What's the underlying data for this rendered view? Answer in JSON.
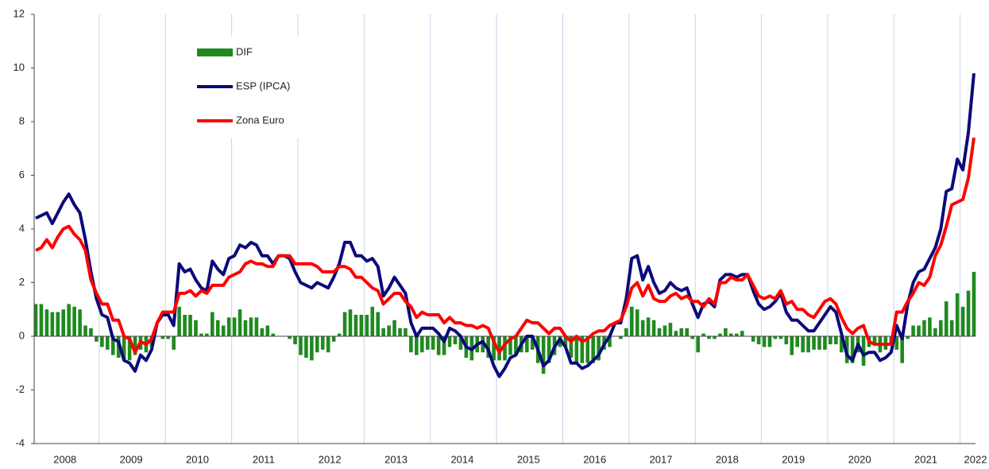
{
  "chart_data": {
    "type": "combo",
    "categories": [
      null,
      null,
      null,
      null,
      null,
      "2008",
      null,
      null,
      null,
      null,
      null,
      null,
      null,
      null,
      null,
      null,
      null,
      "2009",
      null,
      null,
      null,
      null,
      null,
      null,
      null,
      null,
      null,
      null,
      null,
      "2010",
      null,
      null,
      null,
      null,
      null,
      null,
      null,
      null,
      null,
      null,
      null,
      "2011",
      null,
      null,
      null,
      null,
      null,
      null,
      null,
      null,
      null,
      null,
      null,
      "2012",
      null,
      null,
      null,
      null,
      null,
      null,
      null,
      null,
      null,
      null,
      null,
      "2013",
      null,
      null,
      null,
      null,
      null,
      null,
      null,
      null,
      null,
      null,
      null,
      "2014",
      null,
      null,
      null,
      null,
      null,
      null,
      null,
      null,
      null,
      null,
      null,
      "2015",
      null,
      null,
      null,
      null,
      null,
      null,
      null,
      null,
      null,
      null,
      null,
      "2016",
      null,
      null,
      null,
      null,
      null,
      null,
      null,
      null,
      null,
      null,
      null,
      "2017",
      null,
      null,
      null,
      null,
      null,
      null,
      null,
      null,
      null,
      null,
      null,
      "2018",
      null,
      null,
      null,
      null,
      null,
      null,
      null,
      null,
      null,
      null,
      null,
      "2019",
      null,
      null,
      null,
      null,
      null,
      null,
      null,
      null,
      null,
      null,
      null,
      "2020",
      null,
      null,
      null,
      null,
      null,
      null,
      null,
      null,
      null,
      null,
      null,
      "2021",
      null,
      null,
      null,
      null,
      null,
      null,
      null,
      null,
      "2022"
    ],
    "series": [
      {
        "name": "DIF",
        "type": "bar",
        "color": "#1f8a1f",
        "values": [
          1.2,
          1.2,
          1.0,
          0.9,
          0.9,
          1.0,
          1.2,
          1.1,
          1.0,
          0.4,
          0.3,
          -0.2,
          -0.4,
          -0.5,
          -0.7,
          -0.8,
          -0.9,
          -0.9,
          -0.7,
          -0.5,
          -0.6,
          -0.4,
          0.0,
          -0.1,
          -0.1,
          -0.5,
          1.1,
          0.8,
          0.8,
          0.6,
          0.1,
          0.1,
          0.9,
          0.6,
          0.4,
          0.7,
          0.7,
          1.0,
          0.6,
          0.7,
          0.7,
          0.3,
          0.4,
          0.1,
          0.0,
          0.0,
          -0.1,
          -0.3,
          -0.7,
          -0.8,
          -0.9,
          -0.6,
          -0.5,
          -0.6,
          -0.2,
          0.1,
          0.9,
          1.0,
          0.8,
          0.8,
          0.8,
          1.1,
          0.9,
          0.3,
          0.4,
          0.6,
          0.3,
          0.3,
          -0.6,
          -0.7,
          -0.6,
          -0.5,
          -0.5,
          -0.7,
          -0.7,
          -0.4,
          -0.3,
          -0.5,
          -0.8,
          -0.9,
          -0.6,
          -0.6,
          -0.8,
          -0.9,
          -0.9,
          -0.9,
          -0.7,
          -0.7,
          -0.6,
          -0.6,
          -0.5,
          -1.0,
          -1.4,
          -1.0,
          -0.7,
          -0.4,
          -0.4,
          -0.8,
          -1.0,
          -1.0,
          -1.0,
          -1.0,
          -0.9,
          -0.5,
          -0.4,
          0.0,
          -0.1,
          0.3,
          1.1,
          1.0,
          0.6,
          0.7,
          0.6,
          0.3,
          0.4,
          0.5,
          0.2,
          0.3,
          0.3,
          -0.1,
          -0.6,
          0.1,
          -0.1,
          -0.1,
          0.1,
          0.3,
          0.1,
          0.1,
          0.2,
          0.0,
          -0.2,
          -0.3,
          -0.4,
          -0.4,
          -0.1,
          -0.1,
          -0.3,
          -0.7,
          -0.4,
          -0.6,
          -0.6,
          -0.5,
          -0.5,
          -0.5,
          -0.3,
          -0.3,
          -0.6,
          -1.0,
          -1.0,
          -0.6,
          -1.1,
          -0.4,
          -0.3,
          -0.6,
          -0.5,
          -0.3,
          -0.5,
          -1.0,
          -0.1,
          0.4,
          0.4,
          0.6,
          0.7,
          0.3,
          0.6,
          1.3,
          0.6,
          1.6,
          1.1,
          1.7,
          2.4
        ]
      },
      {
        "name": "ESP (IPCA)",
        "type": "line",
        "color": "#0a0a7a",
        "values": [
          4.4,
          4.5,
          4.6,
          4.2,
          4.6,
          5.0,
          5.3,
          4.9,
          4.6,
          3.6,
          2.4,
          1.4,
          0.8,
          0.7,
          -0.1,
          -0.2,
          -0.9,
          -1.0,
          -1.3,
          -0.7,
          -0.9,
          -0.5,
          0.5,
          0.8,
          0.8,
          0.4,
          2.7,
          2.4,
          2.5,
          2.1,
          1.8,
          1.7,
          2.8,
          2.5,
          2.3,
          2.9,
          3.0,
          3.4,
          3.3,
          3.5,
          3.4,
          3.0,
          3.0,
          2.7,
          3.0,
          3.0,
          2.9,
          2.4,
          2.0,
          1.9,
          1.8,
          2.0,
          1.9,
          1.8,
          2.2,
          2.7,
          3.5,
          3.5,
          3.0,
          3.0,
          2.8,
          2.9,
          2.6,
          1.5,
          1.8,
          2.2,
          1.9,
          1.6,
          0.5,
          0.0,
          0.3,
          0.3,
          0.3,
          0.1,
          -0.2,
          0.3,
          0.2,
          0.0,
          -0.4,
          -0.5,
          -0.3,
          -0.2,
          -0.5,
          -1.1,
          -1.5,
          -1.2,
          -0.8,
          -0.7,
          -0.3,
          0.0,
          0.0,
          -0.5,
          -1.1,
          -0.9,
          -0.4,
          -0.1,
          -0.4,
          -1.0,
          -1.0,
          -1.2,
          -1.1,
          -0.9,
          -0.7,
          -0.3,
          0.0,
          0.5,
          0.5,
          1.4,
          2.9,
          3.0,
          2.1,
          2.6,
          2.0,
          1.6,
          1.7,
          2.0,
          1.8,
          1.7,
          1.8,
          1.2,
          0.7,
          1.2,
          1.3,
          1.1,
          2.1,
          2.3,
          2.3,
          2.2,
          2.3,
          2.3,
          1.7,
          1.2,
          1.0,
          1.1,
          1.3,
          1.6,
          0.9,
          0.6,
          0.6,
          0.4,
          0.2,
          0.2,
          0.5,
          0.8,
          1.1,
          0.9,
          0.1,
          -0.7,
          -0.9,
          -0.3,
          -0.7,
          -0.6,
          -0.6,
          -0.9,
          -0.8,
          -0.6,
          0.4,
          -0.1,
          1.2,
          2.0,
          2.4,
          2.5,
          2.9,
          3.3,
          4.0,
          5.4,
          5.5,
          6.6,
          6.2,
          7.6,
          9.8
        ]
      },
      {
        "name": "Zona Euro",
        "type": "line",
        "color": "#ff0000",
        "values": [
          3.2,
          3.3,
          3.6,
          3.3,
          3.7,
          4.0,
          4.1,
          3.8,
          3.6,
          3.2,
          2.1,
          1.6,
          1.2,
          1.2,
          0.6,
          0.6,
          0.0,
          -0.1,
          -0.6,
          -0.2,
          -0.3,
          -0.1,
          0.5,
          0.9,
          0.9,
          0.9,
          1.6,
          1.6,
          1.7,
          1.5,
          1.7,
          1.6,
          1.9,
          1.9,
          1.9,
          2.2,
          2.3,
          2.4,
          2.7,
          2.8,
          2.7,
          2.7,
          2.6,
          2.6,
          3.0,
          3.0,
          3.0,
          2.7,
          2.7,
          2.7,
          2.7,
          2.6,
          2.4,
          2.4,
          2.4,
          2.6,
          2.6,
          2.5,
          2.2,
          2.2,
          2.0,
          1.8,
          1.7,
          1.2,
          1.4,
          1.6,
          1.6,
          1.3,
          1.1,
          0.7,
          0.9,
          0.8,
          0.8,
          0.8,
          0.5,
          0.7,
          0.5,
          0.5,
          0.4,
          0.4,
          0.3,
          0.4,
          0.3,
          -0.2,
          -0.6,
          -0.3,
          -0.1,
          0.0,
          0.3,
          0.6,
          0.5,
          0.5,
          0.3,
          0.1,
          0.3,
          0.3,
          0.0,
          -0.2,
          0.0,
          -0.2,
          -0.1,
          0.1,
          0.2,
          0.2,
          0.4,
          0.5,
          0.6,
          1.1,
          1.8,
          2.0,
          1.5,
          1.9,
          1.4,
          1.3,
          1.3,
          1.5,
          1.6,
          1.4,
          1.5,
          1.3,
          1.3,
          1.1,
          1.4,
          1.2,
          2.0,
          2.0,
          2.2,
          2.1,
          2.1,
          2.3,
          1.9,
          1.5,
          1.4,
          1.5,
          1.4,
          1.7,
          1.2,
          1.3,
          1.0,
          1.0,
          0.8,
          0.7,
          1.0,
          1.3,
          1.4,
          1.2,
          0.7,
          0.3,
          0.1,
          0.3,
          0.4,
          -0.2,
          -0.3,
          -0.3,
          -0.3,
          -0.3,
          0.9,
          0.9,
          1.3,
          1.6,
          2.0,
          1.9,
          2.2,
          3.0,
          3.4,
          4.1,
          4.9,
          5.0,
          5.1,
          5.9,
          7.4
        ]
      }
    ],
    "ylim": [
      -4,
      12
    ],
    "yticks": [
      -4,
      -2,
      0,
      2,
      4,
      6,
      8,
      10,
      12
    ]
  }
}
